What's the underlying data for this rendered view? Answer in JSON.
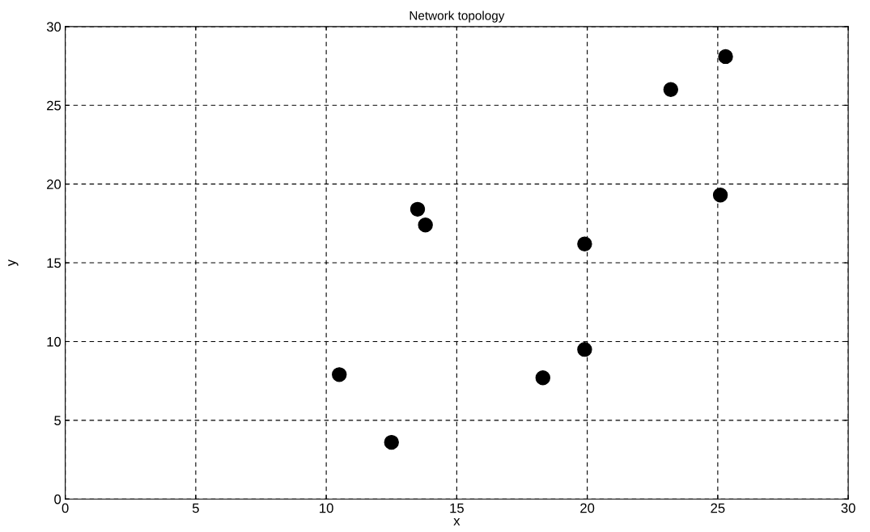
{
  "chart_data": {
    "type": "scatter",
    "title": "Network topology",
    "xlabel": "x",
    "ylabel": "y",
    "x": [
      10.5,
      12.5,
      13.5,
      13.8,
      18.3,
      19.9,
      19.9,
      23.2,
      25.1,
      25.3
    ],
    "values": [
      7.9,
      3.6,
      18.4,
      17.4,
      7.7,
      9.5,
      16.2,
      26.0,
      19.3,
      28.1
    ],
    "color": "#000000",
    "marker": "circle",
    "xlim": [
      0,
      30
    ],
    "ylim": [
      0,
      30
    ],
    "xticks": [
      0,
      5,
      10,
      15,
      20,
      25,
      30
    ],
    "yticks": [
      0,
      5,
      10,
      15,
      20,
      25,
      30
    ],
    "grid": true
  }
}
